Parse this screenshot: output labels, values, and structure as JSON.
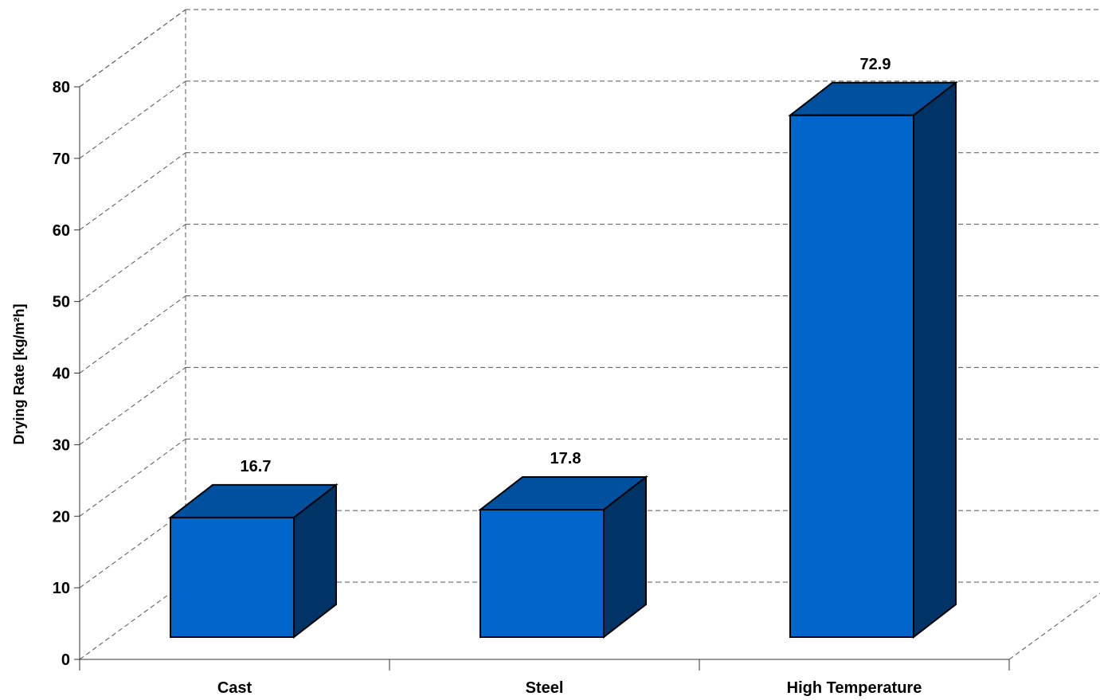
{
  "chart_data": {
    "type": "bar",
    "style": "3d",
    "title": "",
    "xlabel": "",
    "ylabel": "Drying Rate [kg/m²h]",
    "ylim": [
      0,
      80
    ],
    "yticks": [
      0,
      10,
      20,
      30,
      40,
      50,
      60,
      70,
      80
    ],
    "grid": true,
    "categories": [
      "Cast",
      "Steel",
      "High Temperature"
    ],
    "values": [
      16.7,
      17.8,
      72.9
    ],
    "data_labels": [
      "16.7",
      "17.8",
      "72.9"
    ],
    "colors": {
      "front": "#0066cc",
      "top": "#0050a0",
      "side": "#003366"
    }
  }
}
